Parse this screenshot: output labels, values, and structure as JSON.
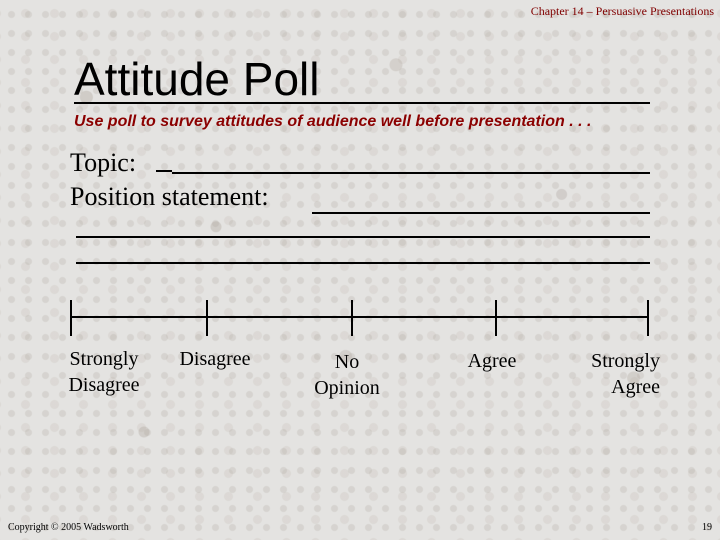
{
  "header": {
    "chapter": "Chapter 14 – Persuasive Presentations"
  },
  "slide": {
    "title": "Attitude Poll",
    "subtitle": "Use poll to survey attitudes of audience well before presentation . . .",
    "topic_label": "Topic:",
    "position_label": "Position statement:"
  },
  "scale": {
    "labels": [
      "Strongly Disagree",
      "Disagree",
      "No Opinion",
      "Agree",
      "Strongly Agree"
    ],
    "label_lines": [
      [
        "Strongly",
        "Disagree"
      ],
      [
        "Disagree"
      ],
      [
        "No",
        "Opinion"
      ],
      [
        "Agree"
      ],
      [
        "Strongly",
        "Agree"
      ]
    ]
  },
  "footer": {
    "copyright": "Copyright © 2005 Wadsworth",
    "page_number": "19"
  }
}
